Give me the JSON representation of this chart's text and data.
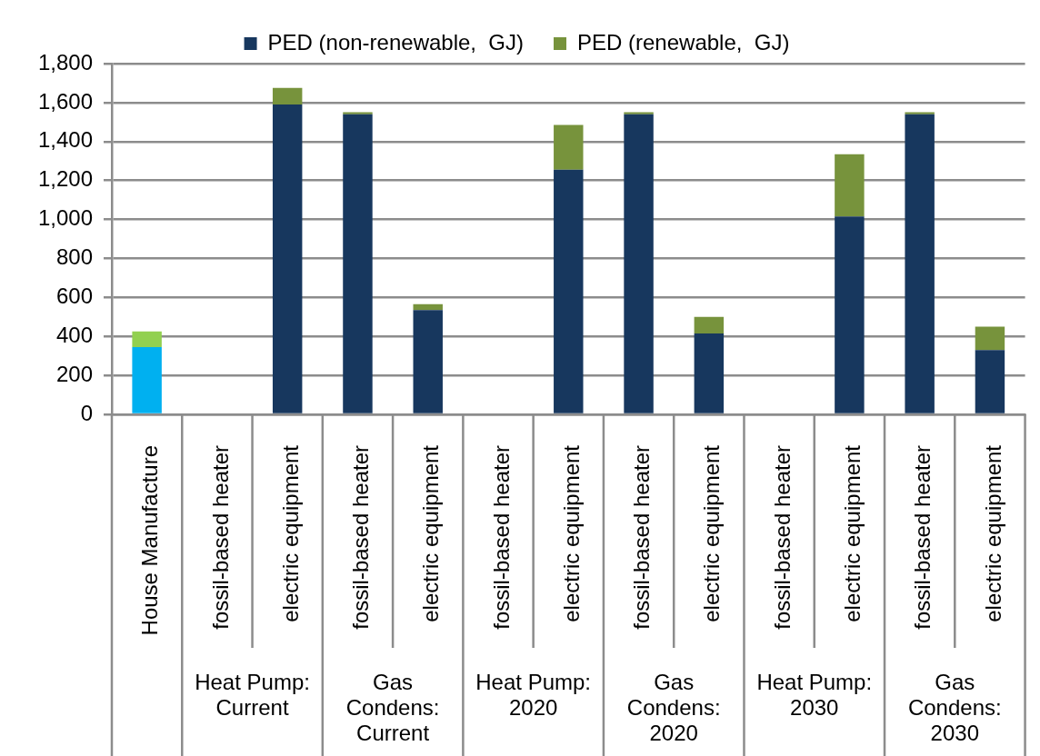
{
  "chart_data": {
    "type": "bar",
    "stacked": true,
    "categories": [
      "House Manufacture",
      "fossil-based heater",
      "electric equipment",
      "fossil-based heater",
      "electric equipment",
      "fossil-based heater",
      "electric equipment",
      "fossil-based heater",
      "electric equipment",
      "fossil-based heater",
      "electric equipment",
      "fossil-based heater",
      "electric equipment"
    ],
    "series": [
      {
        "name": "PED (non-renewable,  GJ)",
        "color": "#17375e",
        "colors": [
          "#00b0f0",
          "#17375e",
          "#17375e",
          "#17375e",
          "#17375e",
          "#17375e",
          "#17375e",
          "#17375e",
          "#17375e",
          "#17375e",
          "#17375e",
          "#17375e",
          "#17375e"
        ],
        "values": [
          345,
          null,
          1590,
          1540,
          535,
          null,
          1255,
          1540,
          415,
          null,
          1015,
          1540,
          330
        ]
      },
      {
        "name": "PED (renewable,  GJ)",
        "color": "#77933c",
        "colors": [
          "#92d050",
          "#77933c",
          "#77933c",
          "#77933c",
          "#77933c",
          "#77933c",
          "#77933c",
          "#77933c",
          "#77933c",
          "#77933c",
          "#77933c",
          "#77933c",
          "#77933c"
        ],
        "values": [
          80,
          null,
          85,
          10,
          30,
          null,
          230,
          10,
          85,
          null,
          320,
          10,
          120
        ]
      }
    ],
    "ylim": [
      0,
      1800
    ],
    "yticks": [
      0,
      200,
      400,
      600,
      800,
      {
        "value": 1000,
        "label": "1,000"
      },
      {
        "value": 1200,
        "label": "1,200"
      },
      {
        "value": 1400,
        "label": "1,400"
      },
      {
        "value": 1600,
        "label": "1,600"
      },
      {
        "value": 1800,
        "label": "1,800"
      }
    ],
    "grid": "y",
    "legend": "top",
    "annotations": [
      "Heat Pump: Current",
      "Gas Condens: Current",
      "Heat Pump: 2020",
      "Gas Condens: 2020",
      "Heat Pump: 2030",
      "Gas Condens: 2030"
    ]
  }
}
